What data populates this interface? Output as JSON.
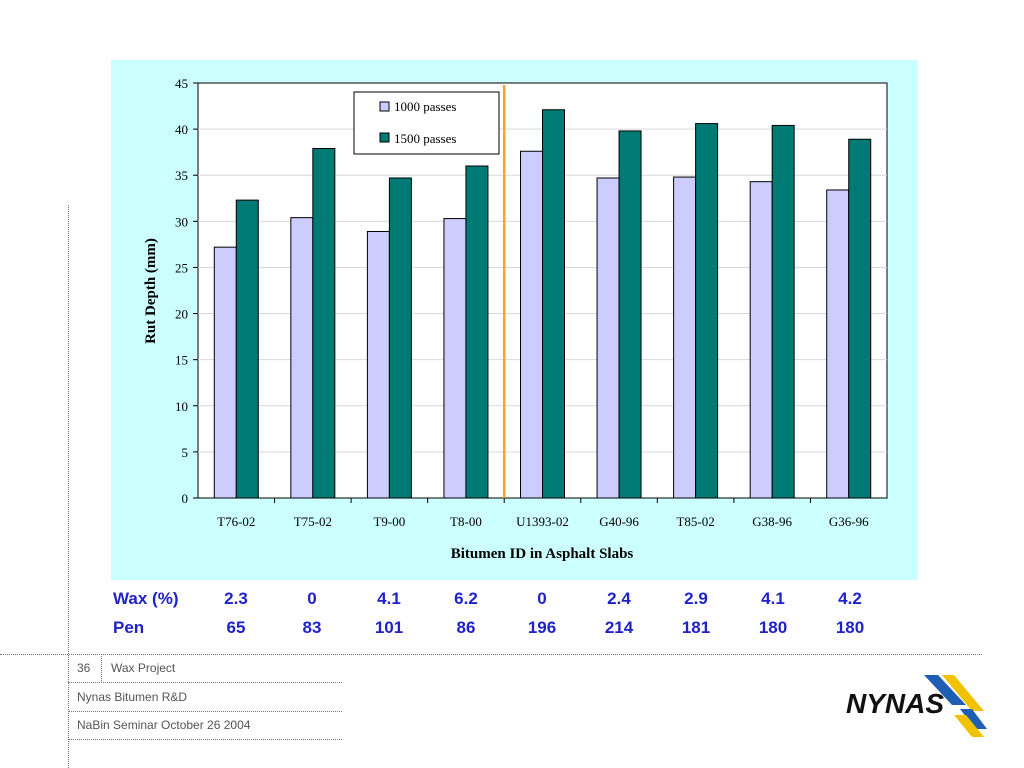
{
  "chart_data": {
    "type": "bar",
    "categories": [
      "T76-02",
      "T75-02",
      "T9-00",
      "T8-00",
      "U1393-02",
      "G40-96",
      "T85-02",
      "G38-96",
      "G36-96"
    ],
    "series": [
      {
        "name": "1000 passes",
        "color": "#ccccff",
        "values": [
          27.2,
          30.4,
          28.9,
          30.3,
          37.6,
          34.7,
          34.8,
          34.3,
          33.4
        ]
      },
      {
        "name": "1500 passes",
        "color": "#007a74",
        "values": [
          32.3,
          37.9,
          34.7,
          36.0,
          42.1,
          39.8,
          40.6,
          40.4,
          38.9
        ]
      }
    ],
    "xlabel": "Bitumen ID in Asphalt Slabs",
    "ylabel": "Rut Depth (mm)",
    "ylim": [
      0,
      45
    ],
    "yticks": [
      "0",
      "5",
      "10",
      "15",
      "20",
      "25",
      "30",
      "35",
      "40",
      "45"
    ],
    "grid": true,
    "legend_position": "top-left",
    "divider_after_category": "T8-00",
    "divider_color": "#f5a623"
  },
  "table": {
    "rows": [
      {
        "label": "Wax (%)",
        "values": [
          "2.3",
          "0",
          "4.1",
          "6.2",
          "0",
          "2.4",
          "2.9",
          "4.1",
          "4.2"
        ]
      },
      {
        "label": "Pen",
        "values": [
          "65",
          "83",
          "101",
          "86",
          "196",
          "214",
          "181",
          "180",
          "180"
        ]
      }
    ]
  },
  "footer": {
    "slide_number": "36",
    "project": "Wax Project",
    "department": "Nynas Bitumen R&D",
    "event": "NaBin Seminar October 26 2004"
  },
  "logo": {
    "text": "NYNAS",
    "colors": {
      "text": "#111111",
      "blue": "#1e5fb3",
      "yellow": "#f2c200"
    }
  }
}
